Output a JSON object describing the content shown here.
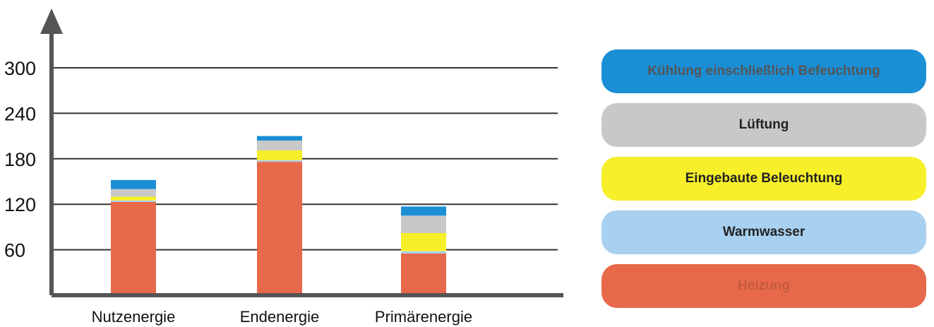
{
  "chart_data": {
    "type": "bar",
    "stacked": true,
    "categories": [
      "Nutzenergie",
      "Endenergie",
      "Primärenergie"
    ],
    "y_ticks": [
      "60",
      "120",
      "180",
      "240",
      "300"
    ],
    "ylim": [
      0,
      300
    ],
    "grid": true,
    "series": [
      {
        "name": "Heizung",
        "color": "#e8694a",
        "values": [
          123,
          176,
          55
        ]
      },
      {
        "name": "Warmwasser",
        "color": "#a8d0f0",
        "values": [
          2,
          2,
          3
        ]
      },
      {
        "name": "Eingebaute Beleuchtung",
        "color": "#f7ef2a",
        "values": [
          5,
          13,
          24
        ]
      },
      {
        "name": "Lüftung",
        "color": "#c8c8c8",
        "values": [
          10,
          13,
          23
        ]
      },
      {
        "name": "Kühlung einschließlich Befeuchtung",
        "color": "#1a8fd6",
        "values": [
          12,
          6,
          12
        ]
      }
    ]
  },
  "legend": {
    "items": [
      {
        "label": "Kühlung einschließlich Befeuchtung",
        "color": "#1a8fd6",
        "text_color": "#555555"
      },
      {
        "label": "Lüftung",
        "color": "#c8c8c8",
        "text_color": "#222222"
      },
      {
        "label": "Eingebaute Beleuchtung",
        "color": "#f7ef2a",
        "text_color": "#222222"
      },
      {
        "label": "Warmwasser",
        "color": "#a8d0f0",
        "text_color": "#222222"
      },
      {
        "label": "Heizung",
        "color": "#e8694a",
        "text_color": "#c45a40"
      }
    ]
  }
}
